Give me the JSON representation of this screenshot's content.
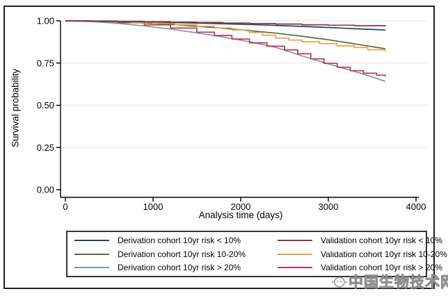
{
  "watermark": {
    "text": "中国生物技术网",
    "icon": "smiley-face-icon",
    "color": "#8a8a8a"
  },
  "chart_data": {
    "type": "line",
    "title": "",
    "xlabel": "Analysis time (days)",
    "ylabel": "Survival probability",
    "xlim": [
      0,
      4000
    ],
    "ylim": [
      0.0,
      1.0
    ],
    "grid": "horizontal",
    "legend_position": "bottom",
    "x_ticks": [
      {
        "label": "0",
        "value": 0
      },
      {
        "label": "1000",
        "value": 1000
      },
      {
        "label": "2000",
        "value": 2000
      },
      {
        "label": "3000",
        "value": 3000
      },
      {
        "label": "4000",
        "value": 4000
      }
    ],
    "y_ticks": [
      {
        "label": "1.00",
        "value": 1.0
      },
      {
        "label": "0.75",
        "value": 0.75
      },
      {
        "label": "0.50",
        "value": 0.5
      },
      {
        "label": "0.25",
        "value": 0.25
      },
      {
        "label": "0.00",
        "value": 0.0
      }
    ],
    "series": [
      {
        "name": "Derivation cohort 10yr risk < 10%",
        "color": "#1a476f",
        "step": false,
        "points": [
          [
            0,
            1.0
          ],
          [
            200,
            0.999
          ],
          [
            500,
            0.997
          ],
          [
            800,
            0.995
          ],
          [
            1100,
            0.992
          ],
          [
            1400,
            0.988
          ],
          [
            1700,
            0.984
          ],
          [
            2000,
            0.98
          ],
          [
            2300,
            0.975
          ],
          [
            2600,
            0.969
          ],
          [
            2900,
            0.963
          ],
          [
            3200,
            0.956
          ],
          [
            3400,
            0.951
          ],
          [
            3650,
            0.946
          ]
        ]
      },
      {
        "name": "Validation cohort 10yr risk < 10%",
        "color": "#90353b",
        "step": true,
        "points": [
          [
            0,
            1.0
          ],
          [
            300,
            0.999
          ],
          [
            600,
            0.997
          ],
          [
            900,
            0.995
          ],
          [
            1200,
            0.992
          ],
          [
            1500,
            0.99
          ],
          [
            1800,
            0.987
          ],
          [
            2100,
            0.984
          ],
          [
            2400,
            0.981
          ],
          [
            2700,
            0.977
          ],
          [
            3000,
            0.974
          ],
          [
            3300,
            0.971
          ],
          [
            3650,
            0.967
          ]
        ]
      },
      {
        "name": "Derivation cohort 10yr risk 10-20%",
        "color": "#4f7034",
        "step": false,
        "points": [
          [
            0,
            1.0
          ],
          [
            300,
            0.998
          ],
          [
            600,
            0.994
          ],
          [
            900,
            0.988
          ],
          [
            1200,
            0.979
          ],
          [
            1500,
            0.968
          ],
          [
            1800,
            0.956
          ],
          [
            2100,
            0.942
          ],
          [
            2400,
            0.927
          ],
          [
            2700,
            0.909
          ],
          [
            3000,
            0.888
          ],
          [
            3200,
            0.872
          ],
          [
            3400,
            0.855
          ],
          [
            3650,
            0.835
          ]
        ]
      },
      {
        "name": "Validation cohort 10yr risk 10-20%",
        "color": "#e9a33c",
        "step": true,
        "points": [
          [
            0,
            1.0
          ],
          [
            250,
            0.999
          ],
          [
            500,
            0.996
          ],
          [
            750,
            0.991
          ],
          [
            1000,
            0.985
          ],
          [
            1250,
            0.977
          ],
          [
            1500,
            0.968
          ],
          [
            1700,
            0.958
          ],
          [
            1900,
            0.946
          ],
          [
            2100,
            0.931
          ],
          [
            2250,
            0.915
          ],
          [
            2400,
            0.898
          ],
          [
            2550,
            0.886
          ],
          [
            2700,
            0.876
          ],
          [
            2900,
            0.865
          ],
          [
            3100,
            0.852
          ],
          [
            3300,
            0.842
          ],
          [
            3450,
            0.829
          ],
          [
            3650,
            0.818
          ]
        ]
      },
      {
        "name": "Derivation cohort 10yr risk > 20%",
        "color": "#7d96aa",
        "step": false,
        "points": [
          [
            0,
            1.0
          ],
          [
            300,
            0.996
          ],
          [
            600,
            0.985
          ],
          [
            900,
            0.97
          ],
          [
            1200,
            0.951
          ],
          [
            1500,
            0.929
          ],
          [
            1800,
            0.904
          ],
          [
            2100,
            0.876
          ],
          [
            2400,
            0.843
          ],
          [
            2700,
            0.792
          ],
          [
            3000,
            0.745
          ],
          [
            3300,
            0.7
          ],
          [
            3500,
            0.668
          ],
          [
            3650,
            0.641
          ]
        ]
      },
      {
        "name": "Validation cohort 10yr risk > 20%",
        "color": "#c2334f",
        "step": true,
        "points": [
          [
            0,
            1.0
          ],
          [
            300,
            0.997
          ],
          [
            600,
            0.989
          ],
          [
            900,
            0.976
          ],
          [
            1200,
            0.957
          ],
          [
            1500,
            0.933
          ],
          [
            1700,
            0.913
          ],
          [
            1900,
            0.892
          ],
          [
            2100,
            0.87
          ],
          [
            2300,
            0.85
          ],
          [
            2500,
            0.828
          ],
          [
            2650,
            0.805
          ],
          [
            2800,
            0.775
          ],
          [
            2950,
            0.748
          ],
          [
            3100,
            0.725
          ],
          [
            3250,
            0.705
          ],
          [
            3400,
            0.69
          ],
          [
            3550,
            0.678
          ],
          [
            3650,
            0.671
          ]
        ]
      }
    ],
    "legend": {
      "items": [
        {
          "label": "Derivation cohort 10yr risk < 10%",
          "color": "#1a476f"
        },
        {
          "label": "Validation cohort 10yr risk < 10%",
          "color": "#90353b"
        },
        {
          "label": "Derivation cohort 10yr risk 10-20%",
          "color": "#4f7034"
        },
        {
          "label": "Validation cohort 10yr risk 10-20%",
          "color": "#e9a33c"
        },
        {
          "label": "Derivation cohort 10yr risk > 20%",
          "color": "#7d96aa"
        },
        {
          "label": "Validation cohort 10yr risk > 20%",
          "color": "#c2334f"
        }
      ]
    },
    "style": {
      "gridline_color": "#f2ebeb",
      "axis_color": "#000000",
      "frame_border_color": "#1f1f1f",
      "legend_border_color": "#333333"
    }
  }
}
